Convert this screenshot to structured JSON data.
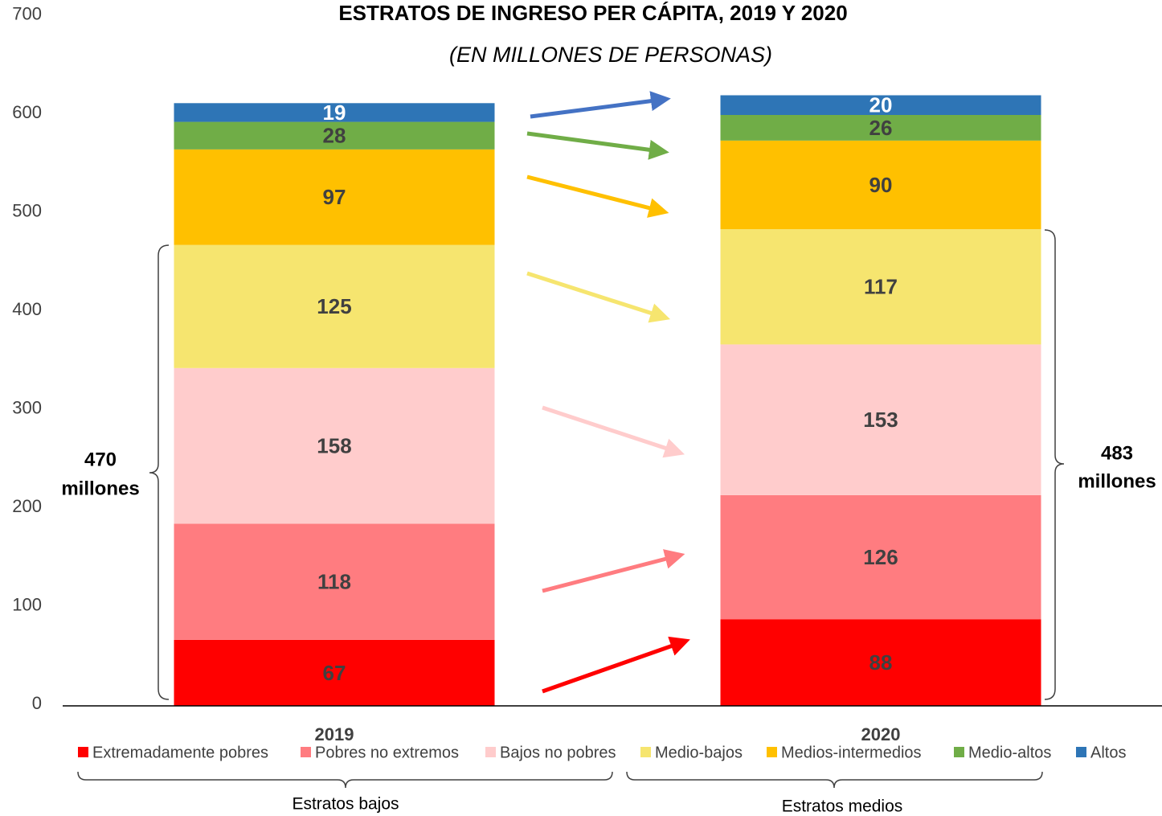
{
  "chart_data": {
    "type": "stacked_bar",
    "title": "ESTRATOS DE INGRESO PER CÁPITA, 2019 Y 2020",
    "subtitle": "(EN MILLONES DE PERSONAS)",
    "categories": [
      "2019",
      "2020"
    ],
    "series": [
      {
        "name": "Extremadamente pobres",
        "color": "#ff0000",
        "values": [
          67,
          88
        ]
      },
      {
        "name": "Pobres no extremos",
        "color": "#ff7c80",
        "values": [
          118,
          126
        ]
      },
      {
        "name": "Bajos no pobres",
        "color": "#ffcccc",
        "values": [
          158,
          153
        ]
      },
      {
        "name": "Medio-bajos",
        "color": "#f6e56f",
        "values": [
          125,
          117
        ]
      },
      {
        "name": "Medios-intermedios",
        "color": "#ffc000",
        "values": [
          97,
          90
        ]
      },
      {
        "name": "Medio-altos",
        "color": "#70ad47",
        "values": [
          28,
          26
        ]
      },
      {
        "name": "Altos",
        "color": "#2e75b6",
        "values": [
          19,
          20
        ]
      }
    ],
    "ylim": [
      0,
      700
    ],
    "yticks": [
      0,
      100,
      200,
      300,
      400,
      500,
      600,
      700
    ],
    "legend": "bottom",
    "annotations": [
      [
        "470",
        "millones"
      ],
      [
        "483",
        "millones"
      ],
      "Estratos bajos",
      "Estratos medios"
    ]
  }
}
